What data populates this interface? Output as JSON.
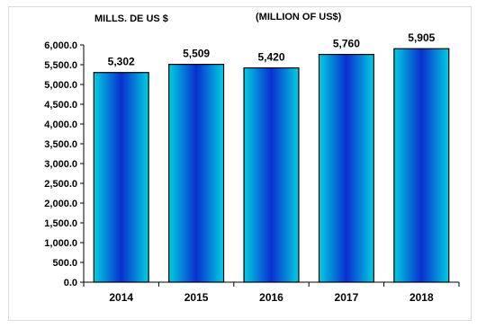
{
  "chart_data": {
    "type": "bar",
    "title": "(MILLION OF US$)",
    "ylabel": "MILLS. DE US $",
    "xlabel": "",
    "categories": [
      "2014",
      "2015",
      "2016",
      "2017",
      "2018"
    ],
    "values": [
      5302,
      5509,
      5420,
      5760,
      5905
    ],
    "value_labels": [
      "5,302",
      "5,509",
      "5,420",
      "5,760",
      "5,905"
    ],
    "ylim": [
      0,
      6000
    ],
    "yticks": [
      0,
      500,
      1000,
      1500,
      2000,
      2500,
      3000,
      3500,
      4000,
      4500,
      5000,
      5500,
      6000
    ],
    "ytick_labels": [
      "0.0",
      "500.0",
      "1,000.0",
      "1,500.0",
      "2,000.0",
      "2,500.0",
      "3,000.0",
      "3,500.0",
      "4,000.0",
      "4,500.0",
      "5,000.0",
      "5,500.0",
      "6,000.0"
    ],
    "grid": false,
    "legend": "none",
    "colors": {
      "bar_edge": "#00c8d8",
      "bar_center": "#0a2fd0",
      "bar_outline": "#000000",
      "axis": "#000000"
    }
  }
}
